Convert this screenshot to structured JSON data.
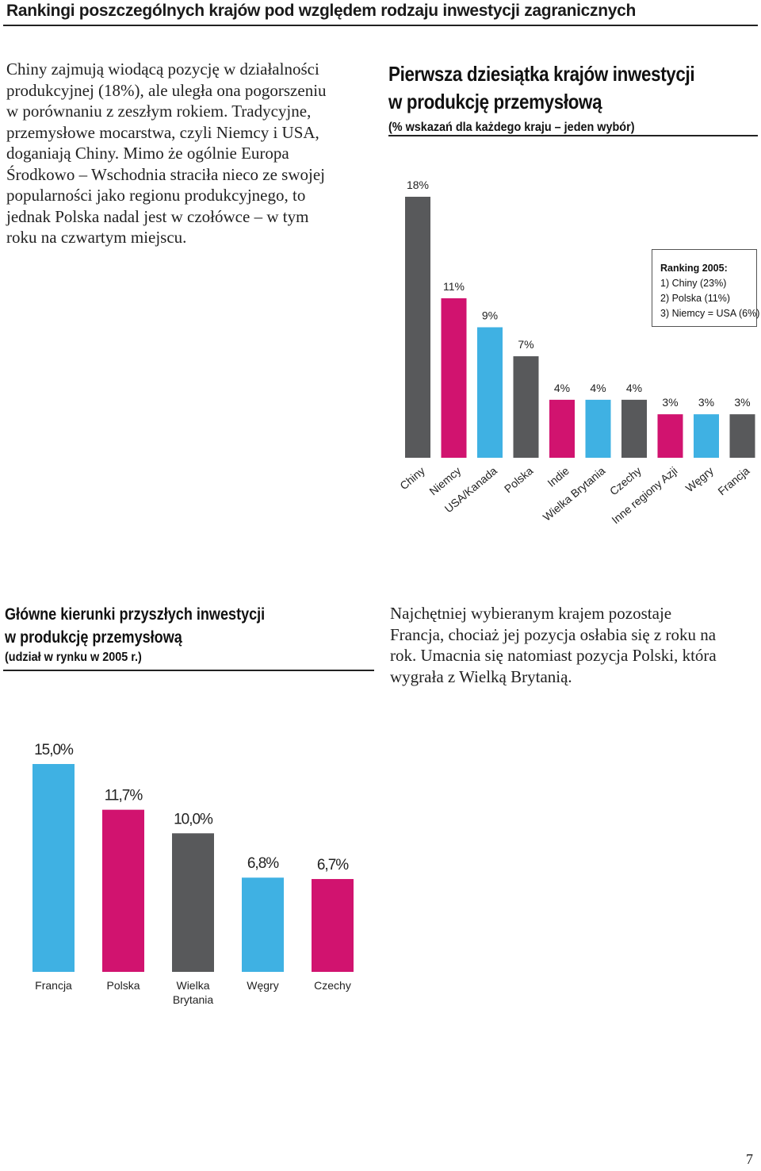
{
  "header": {
    "title": "Rankingi poszczególnych krajów pod względem rodzaju inwestycji zagranicznych"
  },
  "intro_text": [
    "Chiny zajmują wiodącą pozycję w działalności",
    "produkcyjnej (18%), ale uległa ona pogorszeniu",
    "w porównaniu z zeszłym rokiem. Tradycyjne,",
    "przemysłowe mocarstwa, czyli Niemcy i USA,",
    "doganiają Chiny. Mimo że ogólnie Europa",
    "Środkowo – Wschodnia straciła nieco ze swojej",
    "popularności jako regionu produkcyjnego, to",
    "jednak Polska nadal jest w czołówce – w tym",
    "roku na czwartym miejscu."
  ],
  "chart1_header": {
    "title_line1": "Pierwsza dziesiątka krajów inwestycji",
    "title_line2": "w produkcję przemysłową",
    "subtitle": "(% wskazań dla każdego kraju – jeden wybór)"
  },
  "ranking_box": {
    "title": "Ranking 2005:",
    "lines": [
      "1) Chiny (23%)",
      "2) Polska (11%)",
      "3) Niemcy = USA (6%)"
    ]
  },
  "chart2_header": {
    "title_line1": "Główne kierunki przyszłych inwestycji",
    "title_line2": "w produkcję przemysłową",
    "subtitle": "(udział w rynku w 2005 r.)"
  },
  "outro_text": [
    "Najchętniej wybieranym krajem pozostaje",
    "Francja, chociaż jej pozycja osłabia się z roku na",
    "rok. Umacnia się natomiast pozycja Polski, która",
    "wygrała z Wielką Brytanią."
  ],
  "page_number": "7",
  "colors": {
    "gray": "#58595b",
    "magenta": "#d1136f",
    "cyan": "#3fb1e3"
  },
  "chart_data": [
    {
      "type": "bar",
      "categories": [
        "Chiny",
        "Niemcy",
        "USA/Kanada",
        "Polska",
        "Indie",
        "Wielka Brytania",
        "Czechy",
        "Inne regiony Azji",
        "Węgry",
        "Francja"
      ],
      "values": [
        18,
        11,
        9,
        7,
        4,
        4,
        4,
        3,
        3,
        3
      ],
      "labels": [
        "18%",
        "11%",
        "9%",
        "7%",
        "4%",
        "4%",
        "4%",
        "3%",
        "3%",
        "3%"
      ],
      "bar_colors": [
        "gray",
        "magenta",
        "cyan",
        "gray",
        "magenta",
        "cyan",
        "gray",
        "magenta",
        "cyan",
        "gray"
      ],
      "unit": "%",
      "ylim": [
        0,
        18
      ]
    },
    {
      "type": "bar",
      "categories": [
        "Francja",
        "Polska",
        "Wielka Brytania",
        "Węgry",
        "Czechy"
      ],
      "category_lines": [
        [
          "Francja"
        ],
        [
          "Polska"
        ],
        [
          "Wielka",
          "Brytania"
        ],
        [
          "Węgry"
        ],
        [
          "Czechy"
        ]
      ],
      "values": [
        15.0,
        11.7,
        10.0,
        6.8,
        6.7
      ],
      "labels": [
        "15,0%",
        "11,7%",
        "10,0%",
        "6,8%",
        "6,7%"
      ],
      "bar_colors": [
        "cyan",
        "magenta",
        "gray",
        "cyan",
        "magenta"
      ],
      "unit": "%",
      "ylim": [
        0,
        15
      ]
    }
  ]
}
